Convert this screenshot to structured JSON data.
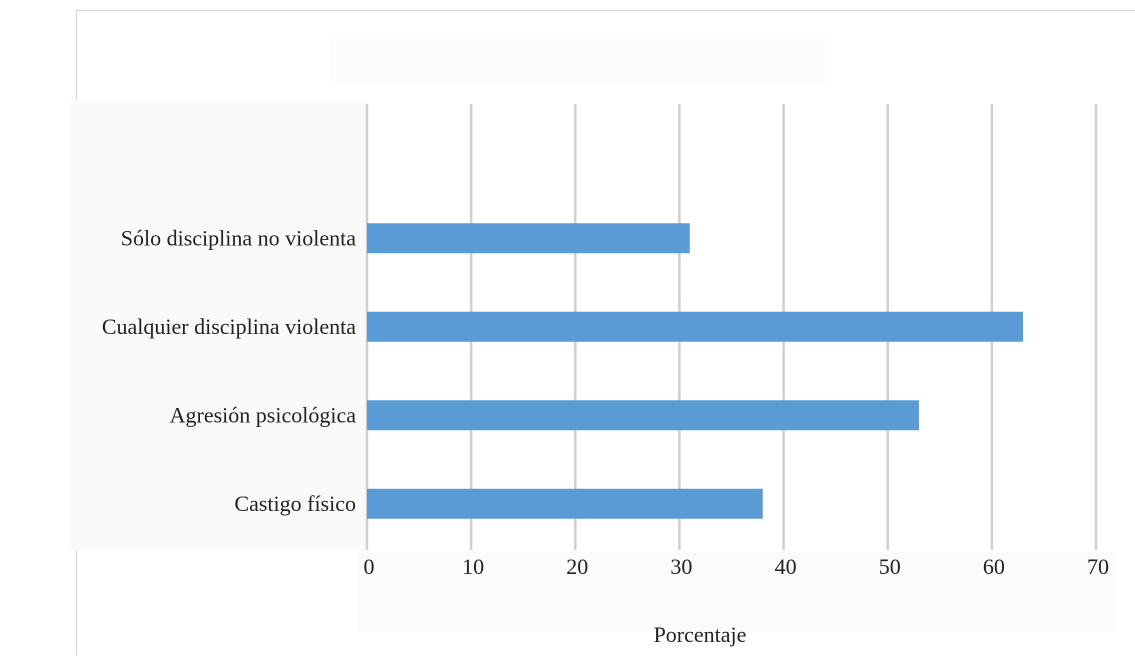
{
  "chart_data": {
    "type": "bar",
    "orientation": "horizontal",
    "title": "",
    "xlabel": "Porcentaje",
    "ylabel": "",
    "categories": [
      "Sólo disciplina no violenta",
      "Cualquier disciplina violenta",
      "Agresión psicológica",
      "Castigo físico"
    ],
    "values": [
      31,
      63,
      53,
      38
    ],
    "xlim": [
      0,
      70
    ],
    "x_ticks": [
      0,
      10,
      20,
      30,
      40,
      50,
      60,
      70
    ],
    "grid": "vertical",
    "legend": "none",
    "bar_color": "#5b9bd5",
    "grid_color": "#d0d0d0"
  }
}
